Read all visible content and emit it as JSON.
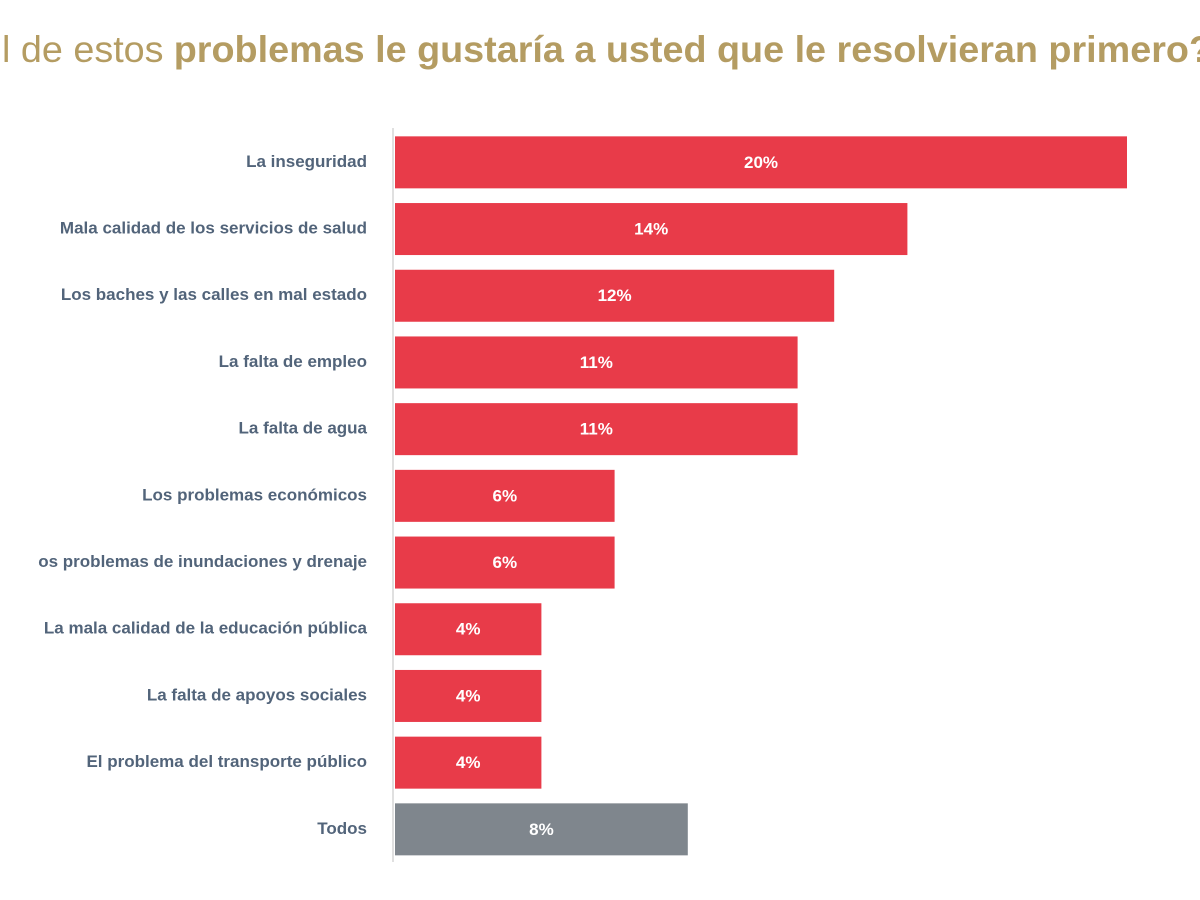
{
  "chart_data": {
    "type": "bar",
    "orientation": "horizontal",
    "title_parts": [
      "l de estos",
      "problemas le gustaría a usted que le resolvieran primero?"
    ],
    "categories": [
      "La inseguridad",
      "Mala calidad de los servicios de salud",
      "Los baches y las calles en mal estado",
      "La falta de empleo",
      "La falta de agua",
      "Los problemas económicos",
      "os problemas de inundaciones y drenaje",
      "La mala calidad de la educación pública",
      "La falta de apoyos sociales",
      "El problema del transporte público",
      "Todos"
    ],
    "values": [
      20,
      14,
      12,
      11,
      11,
      6,
      6,
      4,
      4,
      4,
      8
    ],
    "value_labels": [
      "20%",
      "14%",
      "12%",
      "11%",
      "11%",
      "6%",
      "6%",
      "4%",
      "4%",
      "4%",
      "8%"
    ],
    "colors": [
      "#e83b49",
      "#e83b49",
      "#e83b49",
      "#e83b49",
      "#e83b49",
      "#e83b49",
      "#e83b49",
      "#e83b49",
      "#e83b49",
      "#e83b49",
      "#7f868d"
    ]
  }
}
